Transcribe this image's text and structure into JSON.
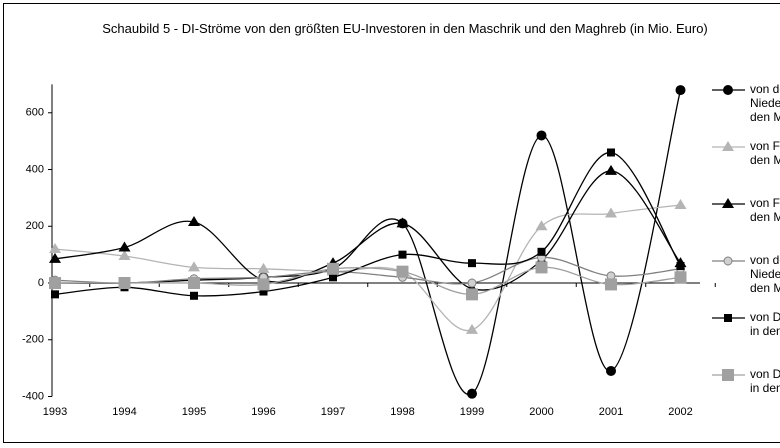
{
  "chart_data": {
    "type": "line",
    "title": "Schaubild 5 - DI-Ströme von den größten EU-Investoren in den Maschrik und den Maghreb (in Mio. Euro)",
    "categories": [
      "1993",
      "1994",
      "1995",
      "1996",
      "1997",
      "1998",
      "1999",
      "2000",
      "2001",
      "2002"
    ],
    "ylim": [
      -400,
      700
    ],
    "yticks": [
      -400,
      -200,
      0,
      200,
      400,
      600
    ],
    "grid": false,
    "legend": "right",
    "series": [
      {
        "name": "von den Niederlanden in den Maschrik",
        "color": "#000000",
        "marker": "circle",
        "values": [
          0,
          0,
          10,
          20,
          50,
          210,
          -390,
          520,
          -310,
          680
        ]
      },
      {
        "name": "von Frankreich in den Maghreb",
        "color": "#b4b4b4",
        "marker": "triangle",
        "values": [
          120,
          95,
          55,
          50,
          40,
          40,
          -165,
          200,
          245,
          275
        ]
      },
      {
        "name": "von Frankreich in den Maschrik",
        "color": "#000000",
        "marker": "triangle",
        "values": [
          85,
          125,
          215,
          10,
          70,
          210,
          -20,
          80,
          395,
          70
        ]
      },
      {
        "name": "von den Niederlanden in den Maghreb",
        "color": "#808080",
        "marker": "open-circle",
        "values": [
          10,
          0,
          15,
          20,
          40,
          20,
          0,
          90,
          25,
          50
        ]
      },
      {
        "name": "von Deutschland in den Maschrik",
        "color": "#000000",
        "marker": "square",
        "values": [
          -40,
          -15,
          -45,
          -30,
          20,
          100,
          70,
          110,
          460,
          60
        ]
      },
      {
        "name": "von Deutschland in den Maghreb",
        "color": "#a0a0a0",
        "marker": "big-square",
        "values": [
          0,
          0,
          0,
          -5,
          50,
          40,
          -40,
          55,
          -5,
          20
        ]
      }
    ]
  }
}
